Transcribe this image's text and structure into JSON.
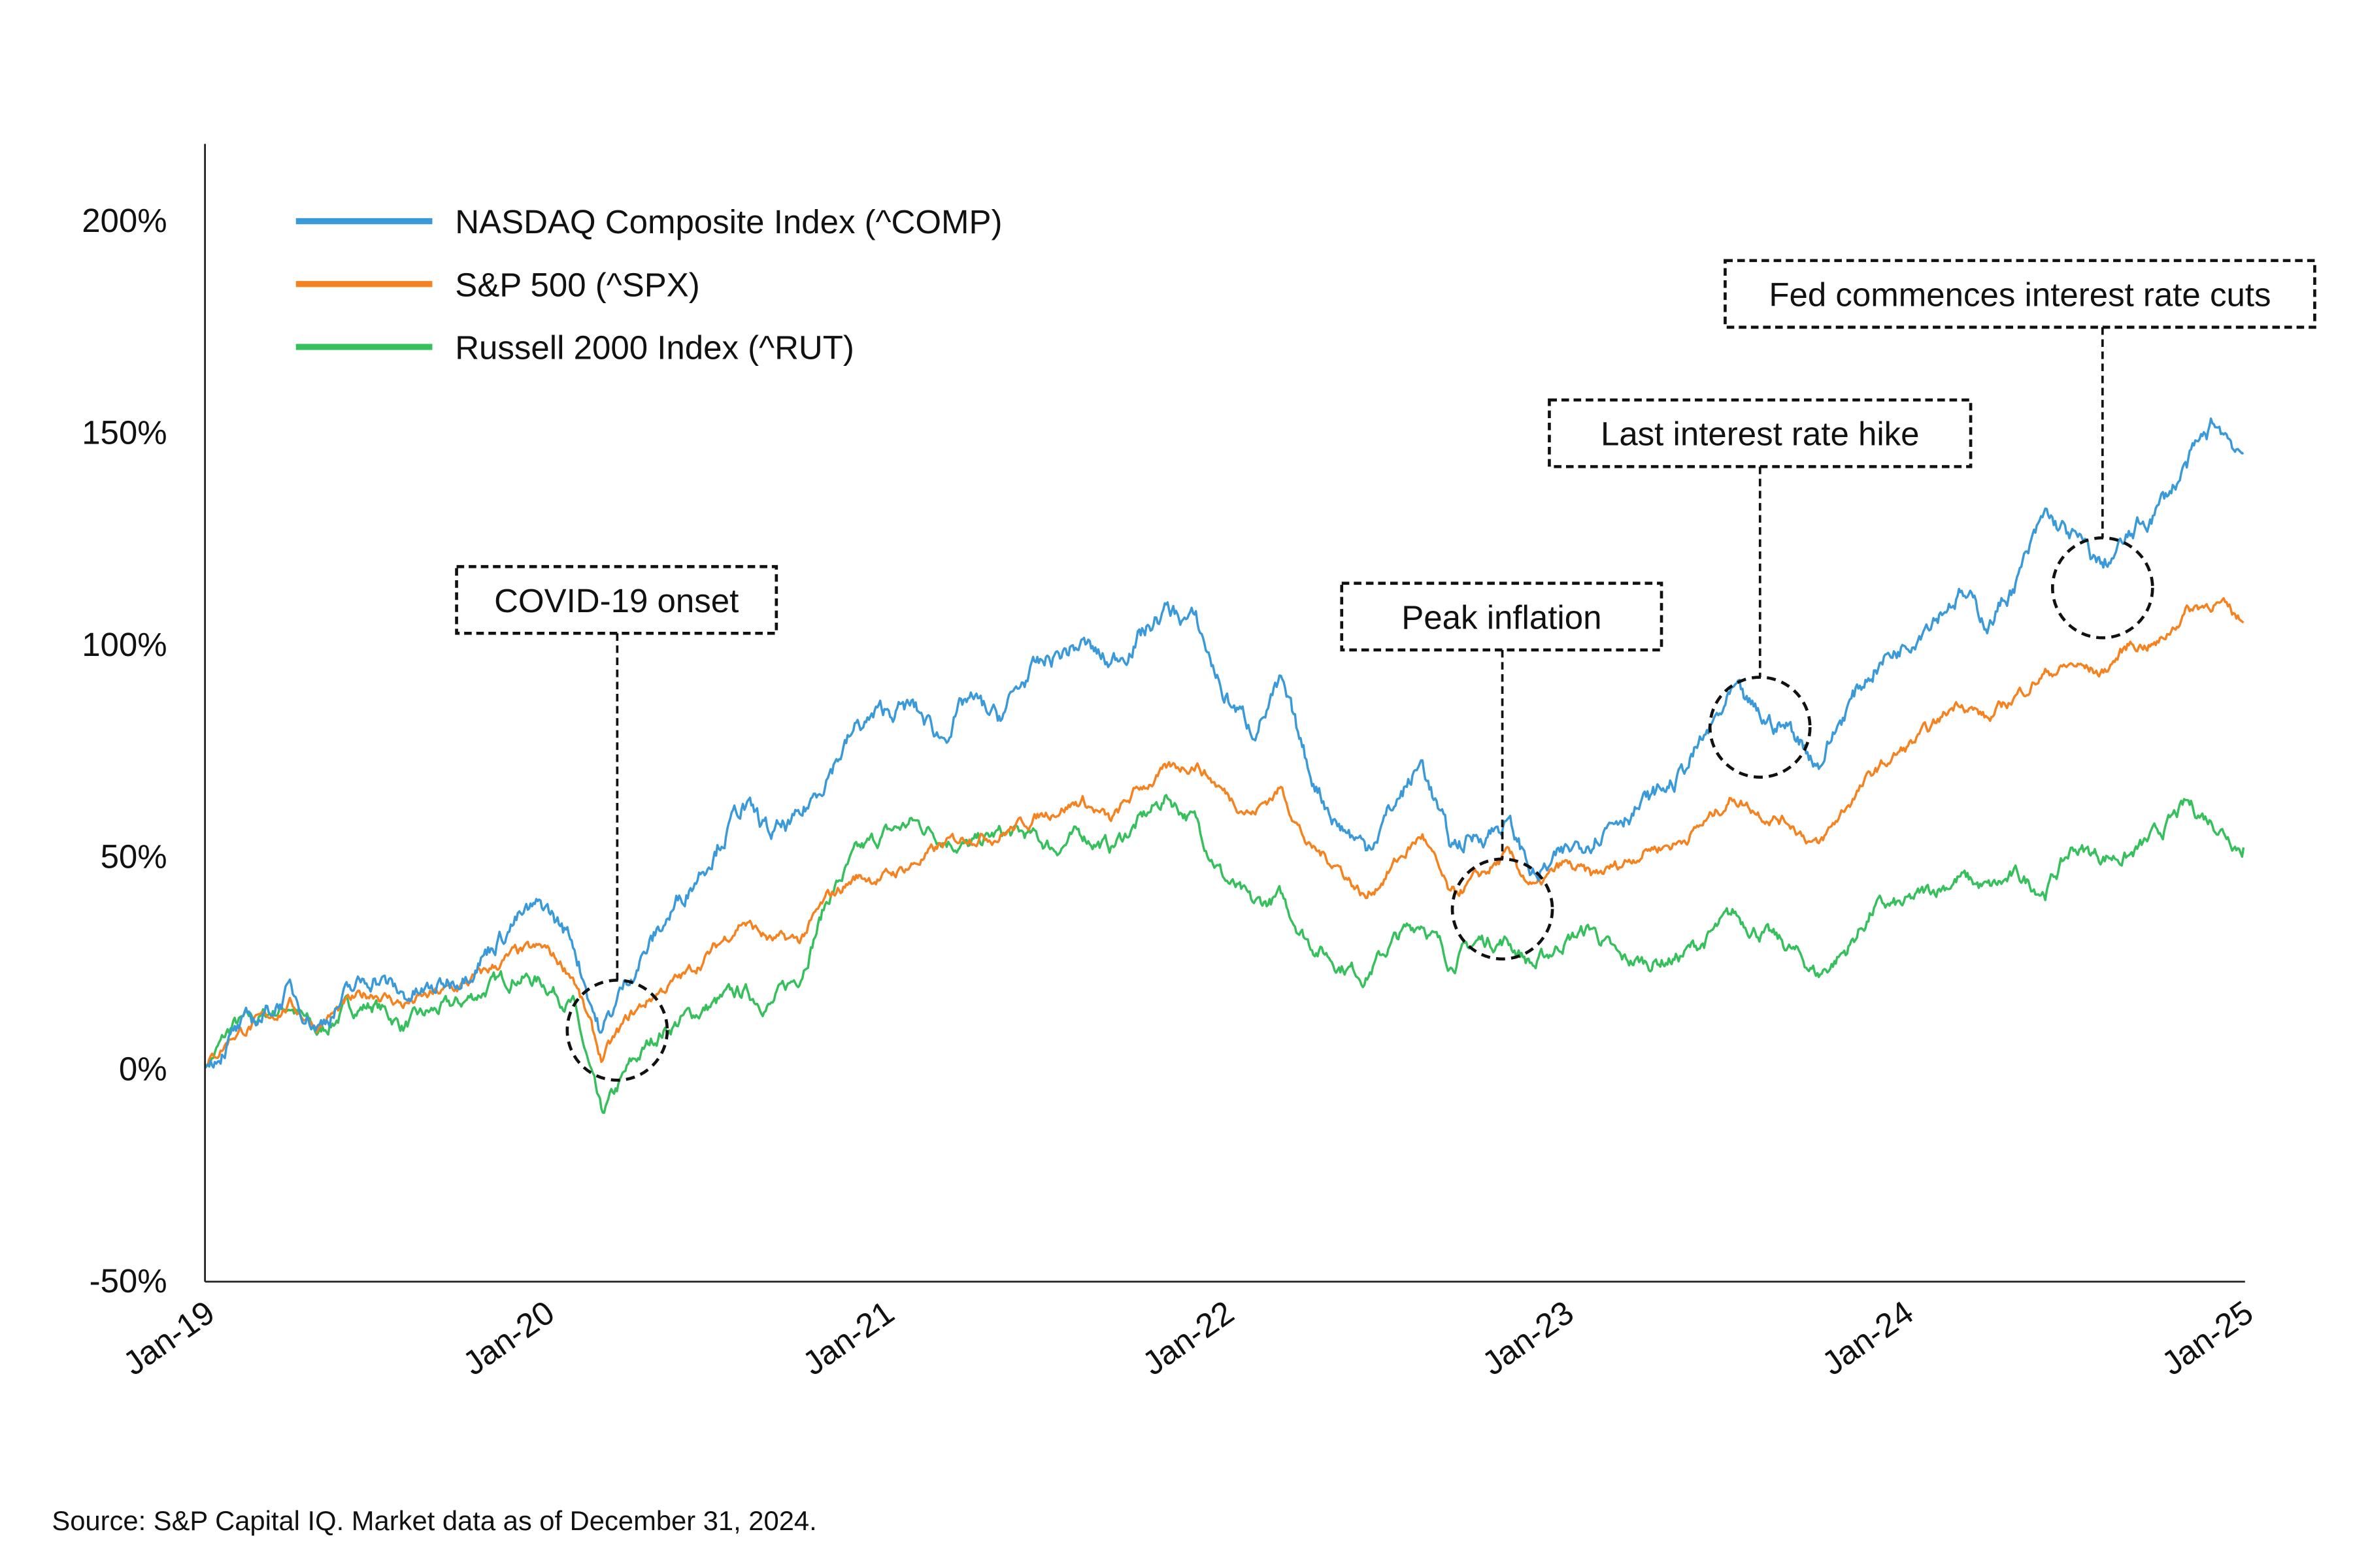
{
  "chart_data": {
    "type": "line",
    "title": "",
    "xlabel": "",
    "ylabel": "",
    "ylim": [
      -50,
      220
    ],
    "y_ticks": [
      "-50%",
      "0%",
      "50%",
      "100%",
      "150%",
      "200%"
    ],
    "y_tick_values": [
      -50,
      0,
      50,
      100,
      150,
      200
    ],
    "x_ticks": [
      "Jan-19",
      "Jan-20",
      "Jan-21",
      "Jan-22",
      "Jan-23",
      "Jan-24",
      "Jan-25"
    ],
    "x_range": [
      "2019-01",
      "2025-01"
    ],
    "frequency": "monthly (approximate readings)",
    "grid": false,
    "legend_placement": "top-left",
    "series": [
      {
        "name": "NASDAQ Composite Index (^COMP)",
        "color": "#3a9ad9",
        "values": [
          0,
          8,
          12,
          18,
          10,
          17,
          22,
          17,
          18,
          22,
          28,
          35,
          38,
          30,
          8,
          22,
          32,
          42,
          52,
          62,
          55,
          58,
          70,
          80,
          84,
          85,
          78,
          87,
          82,
          92,
          97,
          100,
          95,
          102,
          108,
          105,
          88,
          80,
          90,
          70,
          58,
          52,
          62,
          72,
          52,
          55,
          58,
          45,
          50,
          55,
          60,
          63,
          68,
          78,
          88,
          82,
          80,
          72,
          85,
          95,
          100,
          107,
          112,
          105,
          115,
          130,
          125,
          118,
          125,
          132,
          142,
          152,
          145
        ]
      },
      {
        "name": "S&P 500 (^SPX)",
        "color": "#f5821f",
        "values": [
          0,
          8,
          11,
          15,
          10,
          15,
          18,
          15,
          17,
          19,
          23,
          27,
          28,
          22,
          2,
          12,
          18,
          22,
          28,
          35,
          30,
          30,
          40,
          45,
          45,
          48,
          52,
          55,
          55,
          58,
          61,
          63,
          58,
          66,
          70,
          72,
          65,
          60,
          66,
          52,
          48,
          40,
          48,
          55,
          40,
          45,
          50,
          42,
          48,
          45,
          48,
          52,
          53,
          58,
          64,
          60,
          58,
          52,
          62,
          70,
          75,
          80,
          87,
          82,
          88,
          93,
          95,
          93,
          100,
          100,
          108,
          110,
          105
        ]
      },
      {
        "name": "Russell 2000 Index (^RUT)",
        "color": "#35c05c",
        "values": [
          0,
          10,
          12,
          15,
          8,
          14,
          15,
          10,
          13,
          15,
          19,
          22,
          20,
          15,
          -12,
          0,
          8,
          12,
          15,
          18,
          15,
          22,
          40,
          50,
          55,
          58,
          55,
          52,
          55,
          55,
          52,
          55,
          52,
          58,
          64,
          58,
          45,
          38,
          40,
          30,
          25,
          22,
          30,
          35,
          25,
          30,
          30,
          24,
          30,
          33,
          25,
          25,
          26,
          30,
          36,
          32,
          28,
          22,
          28,
          38,
          38,
          42,
          45,
          42,
          45,
          42,
          52,
          50,
          50,
          55,
          62,
          58,
          52
        ]
      }
    ],
    "annotations": [
      {
        "label": "COVID-19 onset",
        "date": "2020-03",
        "value": 10
      },
      {
        "label": "Peak inflation",
        "date": "2022-10",
        "value": 38
      },
      {
        "label": "Last interest rate hike",
        "date": "2023-07",
        "value": 80
      },
      {
        "label": "Fed commences interest rate cuts",
        "date": "2024-08",
        "value": 113
      }
    ]
  },
  "source_note": "Source: S&P Capital IQ. Market data as of December 31, 2024."
}
